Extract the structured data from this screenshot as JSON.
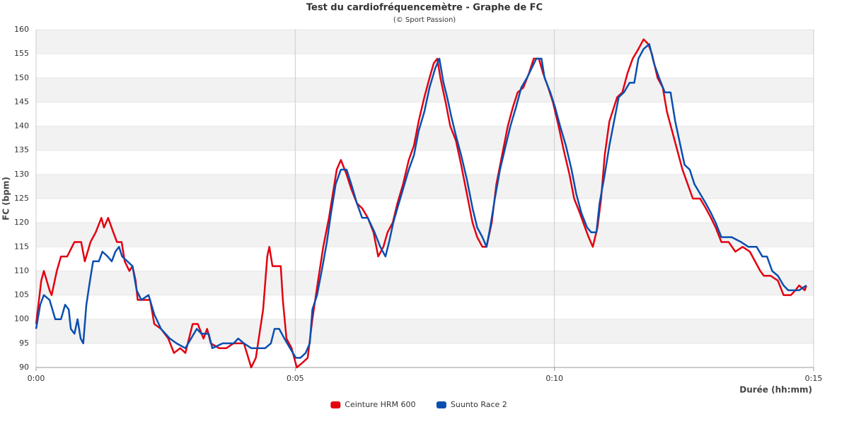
{
  "chart_data": {
    "type": "line",
    "title": "Test du cardiofréquencemètre - Graphe de FC",
    "subtitle": "(© Sport Passion)",
    "x_label": "Durée (hh:mm)",
    "y_label": "FC (bpm)",
    "xlim": [
      0,
      15
    ],
    "xticks": [
      {
        "value": 0,
        "label": "0:00"
      },
      {
        "value": 5,
        "label": "0:05"
      },
      {
        "value": 10,
        "label": "0:10"
      },
      {
        "value": 15,
        "label": "0:15"
      }
    ],
    "ylim": [
      90,
      160
    ],
    "yticks": [
      90,
      95,
      100,
      105,
      110,
      115,
      120,
      125,
      130,
      135,
      140,
      145,
      150,
      155,
      160
    ],
    "grid": true,
    "legend": "bottom",
    "series": [
      {
        "name": "Ceinture HRM 600",
        "color": "#e3000f",
        "x": [
          0,
          0.1,
          0.15,
          0.26,
          0.3,
          0.4,
          0.48,
          0.6,
          0.74,
          0.87,
          0.94,
          1.05,
          1.15,
          1.26,
          1.31,
          1.39,
          1.49,
          1.56,
          1.65,
          1.71,
          1.8,
          1.86,
          1.92,
          1.96,
          2.06,
          2.2,
          2.28,
          2.41,
          2.55,
          2.66,
          2.78,
          2.88,
          3.02,
          3.12,
          3.23,
          3.3,
          3.37,
          3.53,
          3.67,
          3.81,
          4.01,
          4.15,
          4.24,
          4.38,
          4.46,
          4.5,
          4.56,
          4.65,
          4.72,
          4.76,
          4.83,
          4.93,
          5.03,
          5.14,
          5.24,
          5.33,
          5.44,
          5.54,
          5.65,
          5.74,
          5.8,
          5.88,
          5.99,
          6.08,
          6.19,
          6.29,
          6.4,
          6.51,
          6.6,
          6.7,
          6.78,
          6.88,
          6.97,
          7.08,
          7.19,
          7.29,
          7.38,
          7.49,
          7.59,
          7.67,
          7.74,
          7.8,
          7.9,
          7.99,
          8.1,
          8.2,
          8.31,
          8.42,
          8.51,
          8.61,
          8.69,
          8.79,
          8.88,
          8.99,
          9.1,
          9.2,
          9.29,
          9.4,
          9.51,
          9.6,
          9.7,
          9.78,
          9.88,
          9.97,
          10.08,
          10.18,
          10.29,
          10.38,
          10.49,
          10.59,
          10.66,
          10.74,
          10.83,
          10.9,
          10.97,
          11.06,
          11.15,
          11.21,
          11.31,
          11.41,
          11.51,
          11.62,
          11.72,
          11.81,
          11.88,
          11.99,
          12.09,
          12.17,
          12.27,
          12.37,
          12.47,
          12.57,
          12.67,
          12.81,
          12.92,
          13.02,
          13.11,
          13.22,
          13.36,
          13.49,
          13.63,
          13.77,
          13.87,
          13.97,
          14.04,
          14.17,
          14.31,
          14.42,
          14.56,
          14.65,
          14.72,
          14.83,
          14.86
        ],
        "values": [
          99,
          108,
          110,
          106,
          105,
          110,
          113,
          113,
          116,
          116,
          112,
          116,
          118,
          121,
          119,
          121,
          118,
          116,
          116,
          112,
          110,
          111,
          108,
          104,
          104,
          104,
          99,
          98,
          96,
          93,
          94,
          93,
          99,
          99,
          96,
          98,
          95,
          94,
          94,
          95,
          95,
          90,
          92,
          102,
          113,
          115,
          111,
          111,
          111,
          104,
          96,
          94,
          90,
          91,
          92,
          100,
          108,
          115,
          121,
          127,
          131,
          133,
          130,
          127,
          124,
          123,
          121,
          118,
          113,
          115,
          118,
          120,
          124,
          128,
          133,
          136,
          141,
          146,
          150,
          153,
          154,
          150,
          145,
          140,
          137,
          132,
          126,
          120,
          117,
          115,
          115,
          120,
          128,
          134,
          140,
          144,
          147,
          148,
          151,
          154,
          154,
          151,
          148,
          145,
          140,
          135,
          130,
          125,
          122,
          119,
          117,
          115,
          119,
          125,
          134,
          141,
          144,
          146,
          147,
          151,
          154,
          156,
          158,
          157,
          155,
          150,
          148,
          143,
          139,
          135,
          131,
          128,
          125,
          125,
          123,
          121,
          119,
          116,
          116,
          114,
          115,
          114,
          112,
          110,
          109,
          109,
          108,
          105,
          105,
          106,
          107,
          106,
          107
        ]
      },
      {
        "name": "Suunto Race 2",
        "color": "#0a4fb0",
        "x": [
          0,
          0.08,
          0.15,
          0.26,
          0.37,
          0.48,
          0.56,
          0.63,
          0.67,
          0.74,
          0.8,
          0.86,
          0.91,
          0.97,
          1.04,
          1.1,
          1.21,
          1.28,
          1.38,
          1.46,
          1.53,
          1.6,
          1.66,
          1.76,
          1.86,
          1.94,
          2.03,
          2.17,
          2.28,
          2.41,
          2.58,
          2.71,
          2.88,
          2.99,
          3.1,
          3.19,
          3.33,
          3.4,
          3.6,
          3.81,
          3.9,
          4.01,
          4.15,
          4.42,
          4.53,
          4.6,
          4.69,
          4.79,
          4.9,
          5.01,
          5.1,
          5.2,
          5.28,
          5.33,
          5.42,
          5.51,
          5.61,
          5.69,
          5.78,
          5.88,
          5.99,
          6.08,
          6.19,
          6.29,
          6.4,
          6.53,
          6.64,
          6.74,
          6.81,
          6.89,
          6.97,
          7.08,
          7.19,
          7.29,
          7.38,
          7.49,
          7.59,
          7.7,
          7.78,
          7.86,
          7.93,
          8.01,
          8.1,
          8.2,
          8.31,
          8.42,
          8.51,
          8.61,
          8.69,
          8.76,
          8.85,
          8.95,
          9.06,
          9.15,
          9.26,
          9.36,
          9.47,
          9.56,
          9.65,
          9.75,
          9.81,
          9.92,
          10.01,
          10.11,
          10.22,
          10.33,
          10.42,
          10.52,
          10.63,
          10.71,
          10.81,
          10.87,
          10.97,
          11.06,
          11.15,
          11.24,
          11.34,
          11.45,
          11.54,
          11.62,
          11.72,
          11.83,
          11.92,
          12.02,
          12.13,
          12.24,
          12.33,
          12.43,
          12.51,
          12.61,
          12.7,
          12.81,
          12.92,
          13.02,
          13.11,
          13.22,
          13.42,
          13.6,
          13.74,
          13.9,
          14.01,
          14.1,
          14.2,
          14.31,
          14.42,
          14.51,
          14.72,
          14.86
        ],
        "values": [
          98,
          103,
          105,
          104,
          100,
          100,
          103,
          102,
          98,
          97,
          100,
          96,
          95,
          103,
          108,
          112,
          112,
          114,
          113,
          112,
          114,
          115,
          113,
          112,
          111,
          106,
          104,
          105,
          101,
          98,
          96,
          95,
          94,
          96,
          98,
          97,
          97,
          94,
          95,
          95,
          96,
          95,
          94,
          94,
          95,
          98,
          98,
          96,
          94,
          92,
          92,
          93,
          95,
          102,
          105,
          110,
          116,
          122,
          128,
          131,
          131,
          128,
          124,
          121,
          121,
          118,
          115,
          113,
          116,
          120,
          123,
          127,
          131,
          134,
          139,
          143,
          148,
          152,
          154,
          149,
          146,
          142,
          138,
          134,
          129,
          123,
          119,
          117,
          115,
          119,
          125,
          131,
          136,
          140,
          144,
          148,
          150,
          152,
          154,
          154,
          150,
          147,
          144,
          140,
          136,
          131,
          126,
          122,
          119,
          118,
          118,
          124,
          130,
          136,
          141,
          146,
          147,
          149,
          149,
          154,
          156,
          157,
          153,
          150,
          147,
          147,
          141,
          136,
          132,
          131,
          128,
          126,
          124,
          122,
          120,
          117,
          117,
          116,
          115,
          115,
          113,
          113,
          110,
          109,
          107,
          106,
          106,
          107
        ]
      }
    ]
  }
}
